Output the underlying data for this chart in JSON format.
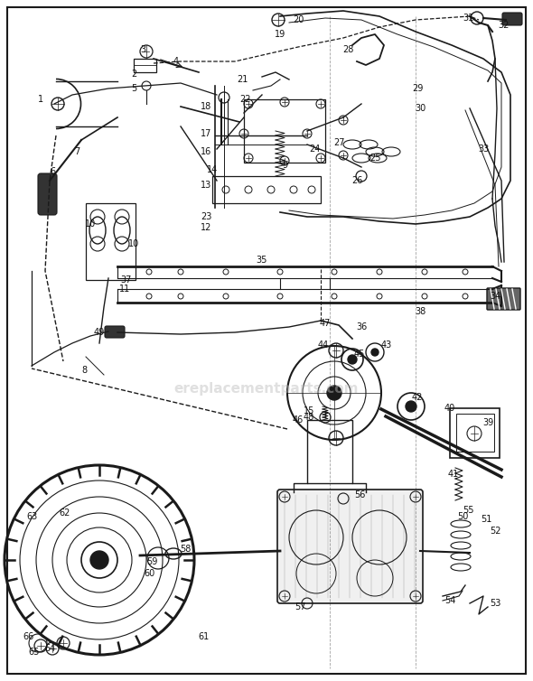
{
  "bg_color": "#ffffff",
  "border_color": "#000000",
  "dc": "#1a1a1a",
  "watermark": "ereplacementparts.com",
  "watermark_color": "#bbbbbb",
  "fig_width": 5.9,
  "fig_height": 7.54,
  "dpi": 100
}
